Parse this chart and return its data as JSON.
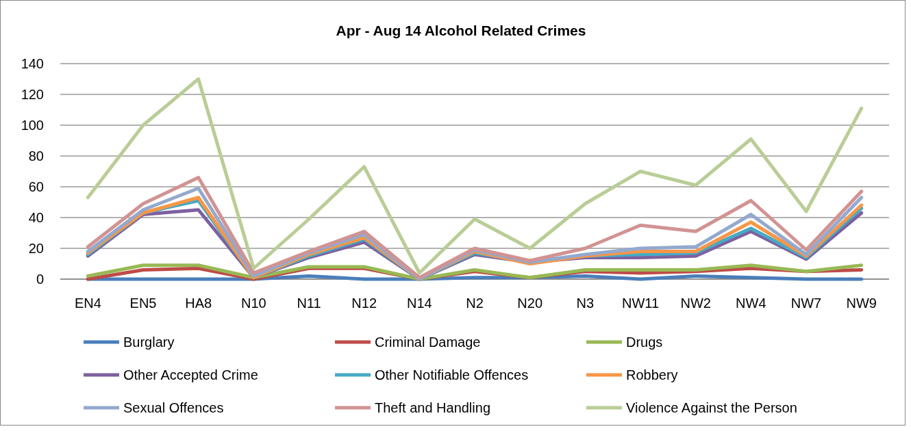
{
  "chart_data": {
    "type": "line",
    "title": "Apr - Aug 14 Alcohol Related Crimes",
    "categories": [
      "EN4",
      "EN5",
      "HA8",
      "N10",
      "N11",
      "N12",
      "N14",
      "N2",
      "N20",
      "N3",
      "NW11",
      "NW2",
      "NW4",
      "NW7",
      "NW9"
    ],
    "series": [
      {
        "name": "Burglary",
        "color": "#4a7ebb",
        "values": [
          0,
          0,
          0,
          0,
          2,
          0,
          0,
          1,
          1,
          2,
          0,
          2,
          1,
          0,
          0
        ]
      },
      {
        "name": "Criminal Damage",
        "color": "#be4b48",
        "values": [
          0,
          6,
          7,
          0,
          7,
          7,
          0,
          5,
          1,
          5,
          4,
          5,
          7,
          5,
          6
        ]
      },
      {
        "name": "Drugs",
        "color": "#98b954",
        "values": [
          2,
          9,
          9,
          1,
          8,
          8,
          0,
          6,
          1,
          6,
          6,
          6,
          9,
          5,
          9
        ]
      },
      {
        "name": "Other Accepted Crime",
        "color": "#7d60a0",
        "values": [
          15,
          42,
          45,
          1,
          14,
          24,
          0,
          16,
          11,
          14,
          14,
          15,
          31,
          13,
          43
        ]
      },
      {
        "name": "Other Notifiable Offences",
        "color": "#46aac5",
        "values": [
          16,
          43,
          51,
          1,
          15,
          26,
          0,
          17,
          11,
          15,
          16,
          17,
          33,
          14,
          46
        ]
      },
      {
        "name": "Robbery",
        "color": "#f79646",
        "values": [
          17,
          43,
          53,
          1,
          16,
          27,
          0,
          18,
          10,
          15,
          18,
          18,
          37,
          15,
          48
        ]
      },
      {
        "name": "Sexual Offences",
        "color": "#93a9cf",
        "values": [
          18,
          45,
          59,
          2,
          17,
          29,
          0,
          19,
          11,
          16,
          20,
          21,
          42,
          16,
          53
        ]
      },
      {
        "name": "Theft and Handling",
        "color": "#d19392",
        "values": [
          21,
          49,
          66,
          4,
          18,
          31,
          1,
          20,
          12,
          20,
          35,
          31,
          51,
          19,
          57
        ]
      },
      {
        "name": "Violence Against the Person",
        "color": "#b9cd96",
        "values": [
          53,
          100,
          130,
          7,
          39,
          73,
          4,
          39,
          20,
          49,
          70,
          61,
          91,
          44,
          111
        ]
      }
    ],
    "ylim": [
      0,
      140
    ],
    "yticks": [
      0,
      20,
      40,
      60,
      80,
      100,
      120,
      140
    ],
    "grid": "y",
    "legend": "bottom",
    "marker": "none",
    "line_style": "solid"
  }
}
